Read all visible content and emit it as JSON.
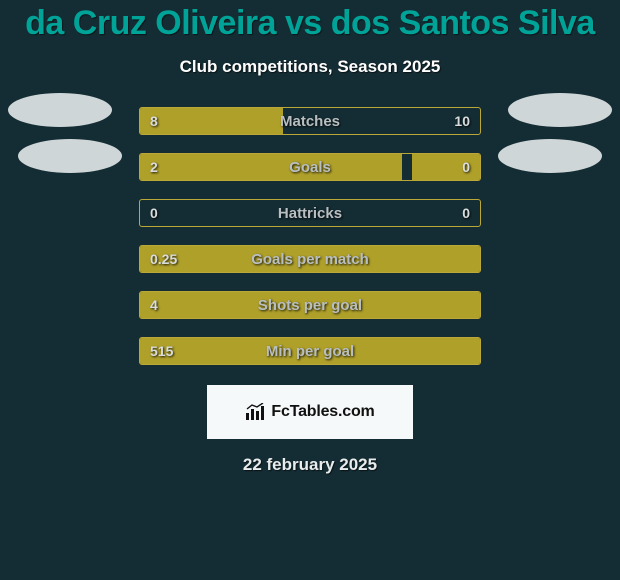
{
  "colors": {
    "background": "#142d34",
    "title": "#00a397",
    "bar_fill": "#afa02a",
    "bar_border": "#bca836",
    "avatar": "#cfd6d8",
    "logo_bg": "#f6f9fa",
    "text_light": "#d9dcdc",
    "label_text": "#b9bfc1"
  },
  "header": {
    "title": "da Cruz Oliveira vs dos Santos Silva",
    "subtitle": "Club competitions, Season 2025"
  },
  "stats": [
    {
      "label": "Matches",
      "left_text": "8",
      "right_text": "10",
      "left_pct": 42,
      "right_pct": 0
    },
    {
      "label": "Goals",
      "left_text": "2",
      "right_text": "0",
      "left_pct": 77,
      "right_pct": 20
    },
    {
      "label": "Hattricks",
      "left_text": "0",
      "right_text": "0",
      "left_pct": 0,
      "right_pct": 0
    },
    {
      "label": "Goals per match",
      "left_text": "0.25",
      "right_text": "",
      "left_pct": 100,
      "right_pct": 0
    },
    {
      "label": "Shots per goal",
      "left_text": "4",
      "right_text": "",
      "left_pct": 100,
      "right_pct": 0
    },
    {
      "label": "Min per goal",
      "left_text": "515",
      "right_text": "",
      "left_pct": 100,
      "right_pct": 0
    }
  ],
  "footer": {
    "brand_prefix": "Fc",
    "brand_main": "Tables",
    "brand_suffix": ".com",
    "date": "22 february 2025"
  }
}
